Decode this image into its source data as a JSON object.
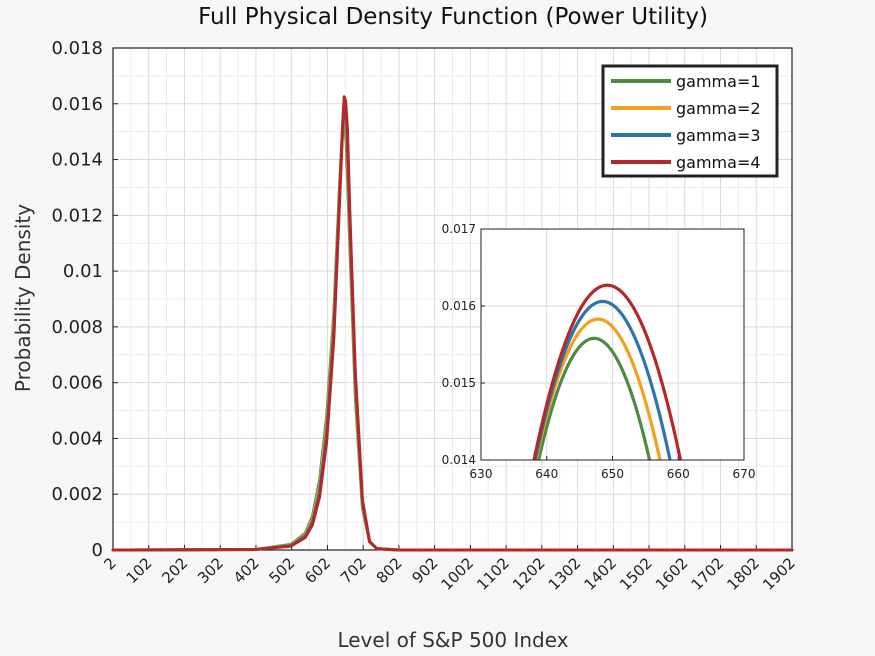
{
  "chart_data": [
    {
      "type": "line",
      "title": "Full Physical Density Function (Power Utility)",
      "xlabel": "Level of S&P 500 Index",
      "ylabel": "Probability Density",
      "xlim": [
        2,
        1902
      ],
      "ylim": [
        0,
        0.018
      ],
      "xticks": [
        "2",
        "102",
        "202",
        "302",
        "402",
        "502",
        "602",
        "702",
        "802",
        "902",
        "1002",
        "1102",
        "1202",
        "1302",
        "1402",
        "1502",
        "1602",
        "1702",
        "1802",
        "1902"
      ],
      "yticks": [
        "0",
        "0.002",
        "0.004",
        "0.006",
        "0.008",
        "0.01",
        "0.012",
        "0.014",
        "0.016",
        "0.018"
      ],
      "grid": true,
      "legend_position": "top-right",
      "series": [
        {
          "name": "gamma=1",
          "color": "#4e8a3f",
          "x": [
            2,
            402,
            500,
            540,
            560,
            580,
            600,
            620,
            635,
            645,
            647,
            650,
            655,
            665,
            680,
            700,
            720,
            740,
            800,
            1902
          ],
          "y": [
            0,
            2e-05,
            0.0002,
            0.0006,
            0.0012,
            0.0025,
            0.0048,
            0.0085,
            0.0128,
            0.0153,
            0.0156,
            0.0155,
            0.0145,
            0.0108,
            0.0055,
            0.0015,
            0.0003,
            5e-05,
            0,
            0
          ]
        },
        {
          "name": "gamma=2",
          "color": "#f2a11c",
          "x": [
            2,
            402,
            500,
            540,
            560,
            580,
            600,
            620,
            635,
            645,
            648,
            651,
            656,
            665,
            680,
            700,
            720,
            740,
            800,
            1902
          ],
          "y": [
            0,
            2e-05,
            0.00018,
            0.00055,
            0.0011,
            0.0023,
            0.0045,
            0.0082,
            0.0126,
            0.0153,
            0.01585,
            0.0157,
            0.0147,
            0.0112,
            0.0058,
            0.0016,
            0.0003,
            5e-05,
            0,
            0
          ]
        },
        {
          "name": "gamma=3",
          "color": "#2c74ab",
          "x": [
            2,
            402,
            500,
            540,
            560,
            580,
            600,
            620,
            635,
            645,
            648.5,
            652,
            657,
            665,
            680,
            700,
            720,
            740,
            800,
            1902
          ],
          "y": [
            0,
            2e-05,
            0.00016,
            0.0005,
            0.001,
            0.0021,
            0.0042,
            0.0079,
            0.0124,
            0.0153,
            0.01605,
            0.0159,
            0.0149,
            0.0116,
            0.0061,
            0.0017,
            0.0003,
            5e-05,
            0,
            0
          ]
        },
        {
          "name": "gamma=4",
          "color": "#b4282a",
          "x": [
            2,
            402,
            500,
            540,
            560,
            580,
            600,
            620,
            635,
            645,
            649,
            653,
            658,
            665,
            680,
            700,
            720,
            740,
            800,
            1902
          ],
          "y": [
            0,
            2e-05,
            0.00014,
            0.00045,
            0.0009,
            0.0019,
            0.0039,
            0.0076,
            0.0122,
            0.0153,
            0.01625,
            0.0161,
            0.0151,
            0.012,
            0.0064,
            0.0018,
            0.0003,
            5e-05,
            0,
            0
          ]
        }
      ]
    },
    {
      "type": "line",
      "title": "",
      "xlim": [
        630,
        670
      ],
      "ylim": [
        0.014,
        0.017
      ],
      "xticks": [
        "630",
        "640",
        "650",
        "660",
        "670"
      ],
      "yticks": [
        "0.014",
        "0.015",
        "0.016",
        "0.017"
      ],
      "grid": true,
      "series": [
        {
          "color": "#4e8a3f",
          "peak_x": 647.2,
          "peak_y": 0.01558,
          "k": 2.22e-05
        },
        {
          "color": "#f2a11c",
          "peak_x": 647.8,
          "peak_y": 0.01583,
          "k": 2.06e-05
        },
        {
          "color": "#2c74ab",
          "peak_x": 648.5,
          "peak_y": 0.01606,
          "k": 1.96e-05
        },
        {
          "color": "#b4282a",
          "peak_x": 649.2,
          "peak_y": 0.01627,
          "k": 1.83e-05
        }
      ]
    }
  ]
}
